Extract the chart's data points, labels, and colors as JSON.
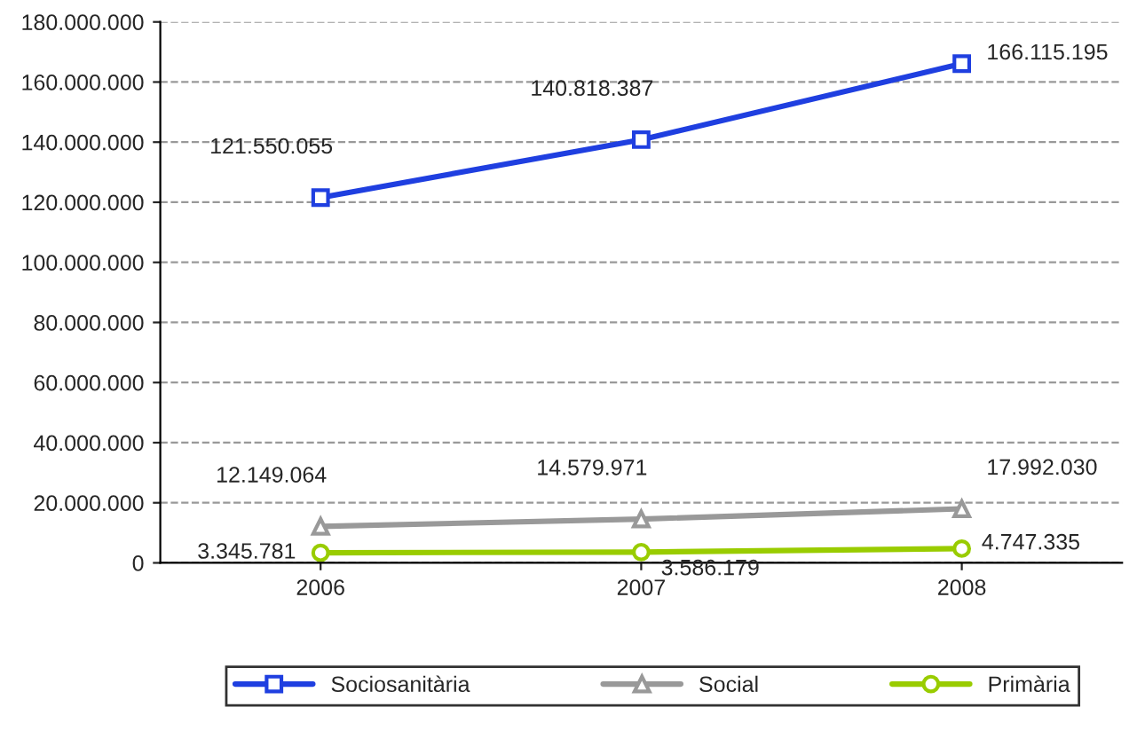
{
  "chart_data": {
    "type": "line",
    "categories": [
      "2006",
      "2007",
      "2008"
    ],
    "series": [
      {
        "name": "Sociosanitària",
        "color": "#1f3fe0",
        "marker": "square",
        "values": [
          121550055,
          140818387,
          166115195
        ],
        "value_labels": [
          "121.550.055",
          "140.818.387",
          "166.115.195"
        ]
      },
      {
        "name": "Social",
        "color": "#999999",
        "marker": "triangle",
        "values": [
          12149064,
          14579971,
          17992030
        ],
        "value_labels": [
          "12.149.064",
          "14.579.971",
          "17.992.030"
        ]
      },
      {
        "name": "Primària",
        "color": "#99cc00",
        "marker": "circle",
        "values": [
          3345781,
          3586179,
          4747335
        ],
        "value_labels": [
          "3.345.781",
          "3.586.179",
          "4.747.335"
        ]
      }
    ],
    "ylim": [
      0,
      180000000
    ],
    "yticks": [
      {
        "value": 0,
        "label": "0"
      },
      {
        "value": 20000000,
        "label": "20.000.000"
      },
      {
        "value": 40000000,
        "label": "40.000.000"
      },
      {
        "value": 60000000,
        "label": "60.000.000"
      },
      {
        "value": 80000000,
        "label": "80.000.000"
      },
      {
        "value": 100000000,
        "label": "100.000.000"
      },
      {
        "value": 120000000,
        "label": "120.000.000"
      },
      {
        "value": 140000000,
        "label": "140.000.000"
      },
      {
        "value": 160000000,
        "label": "160.000.000"
      },
      {
        "value": 180000000,
        "label": "180.000.000"
      }
    ],
    "grid": "y",
    "legend": "bottom"
  }
}
